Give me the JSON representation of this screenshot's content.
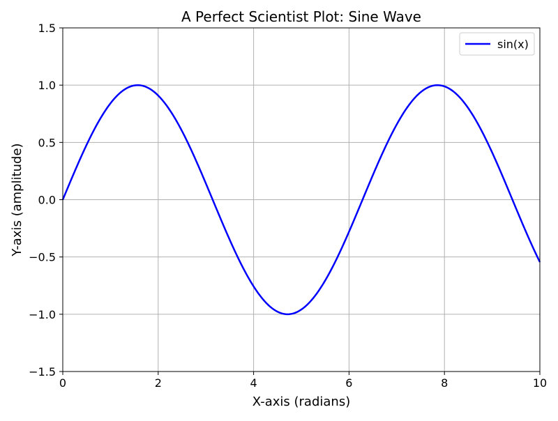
{
  "chart_data": {
    "type": "line",
    "title": "A Perfect Scientist Plot: Sine Wave",
    "xlabel": "X-axis (radians)",
    "ylabel": "Y-axis (amplitude)",
    "xlim": [
      0,
      10
    ],
    "ylim": [
      -1.5,
      1.5
    ],
    "xticks": [
      0,
      2,
      4,
      6,
      8,
      10
    ],
    "xtick_labels": [
      "0",
      "2",
      "4",
      "6",
      "8",
      "10"
    ],
    "yticks": [
      -1.5,
      -1.0,
      -0.5,
      0.0,
      0.5,
      1.0,
      1.5
    ],
    "ytick_labels": [
      "−1.5",
      "−1.0",
      "−0.5",
      "0.0",
      "0.5",
      "1.0",
      "1.5"
    ],
    "grid": true,
    "legend_position": "upper-right",
    "series": [
      {
        "name": "sin(x)",
        "function": "sin(x)",
        "x_range": [
          0,
          10
        ],
        "color": "#0000ff",
        "x": [
          0,
          0.5,
          1,
          1.5708,
          2,
          2.5,
          3,
          3.5,
          4,
          4.5,
          4.7124,
          5,
          5.5,
          6,
          6.5,
          7,
          7.5,
          7.854,
          8,
          8.5,
          9,
          9.5,
          10
        ],
        "y": [
          0,
          0.479,
          0.841,
          1.0,
          0.909,
          0.598,
          0.141,
          -0.351,
          -0.757,
          -0.978,
          -1.0,
          -0.959,
          -0.706,
          -0.279,
          0.215,
          0.657,
          0.938,
          1.0,
          0.989,
          0.798,
          0.412,
          -0.075,
          -0.544
        ]
      }
    ]
  },
  "colors": {
    "line": "#0000ff",
    "grid": "#b0b0b0",
    "axes": "#000000",
    "legend_border": "#cccccc"
  }
}
